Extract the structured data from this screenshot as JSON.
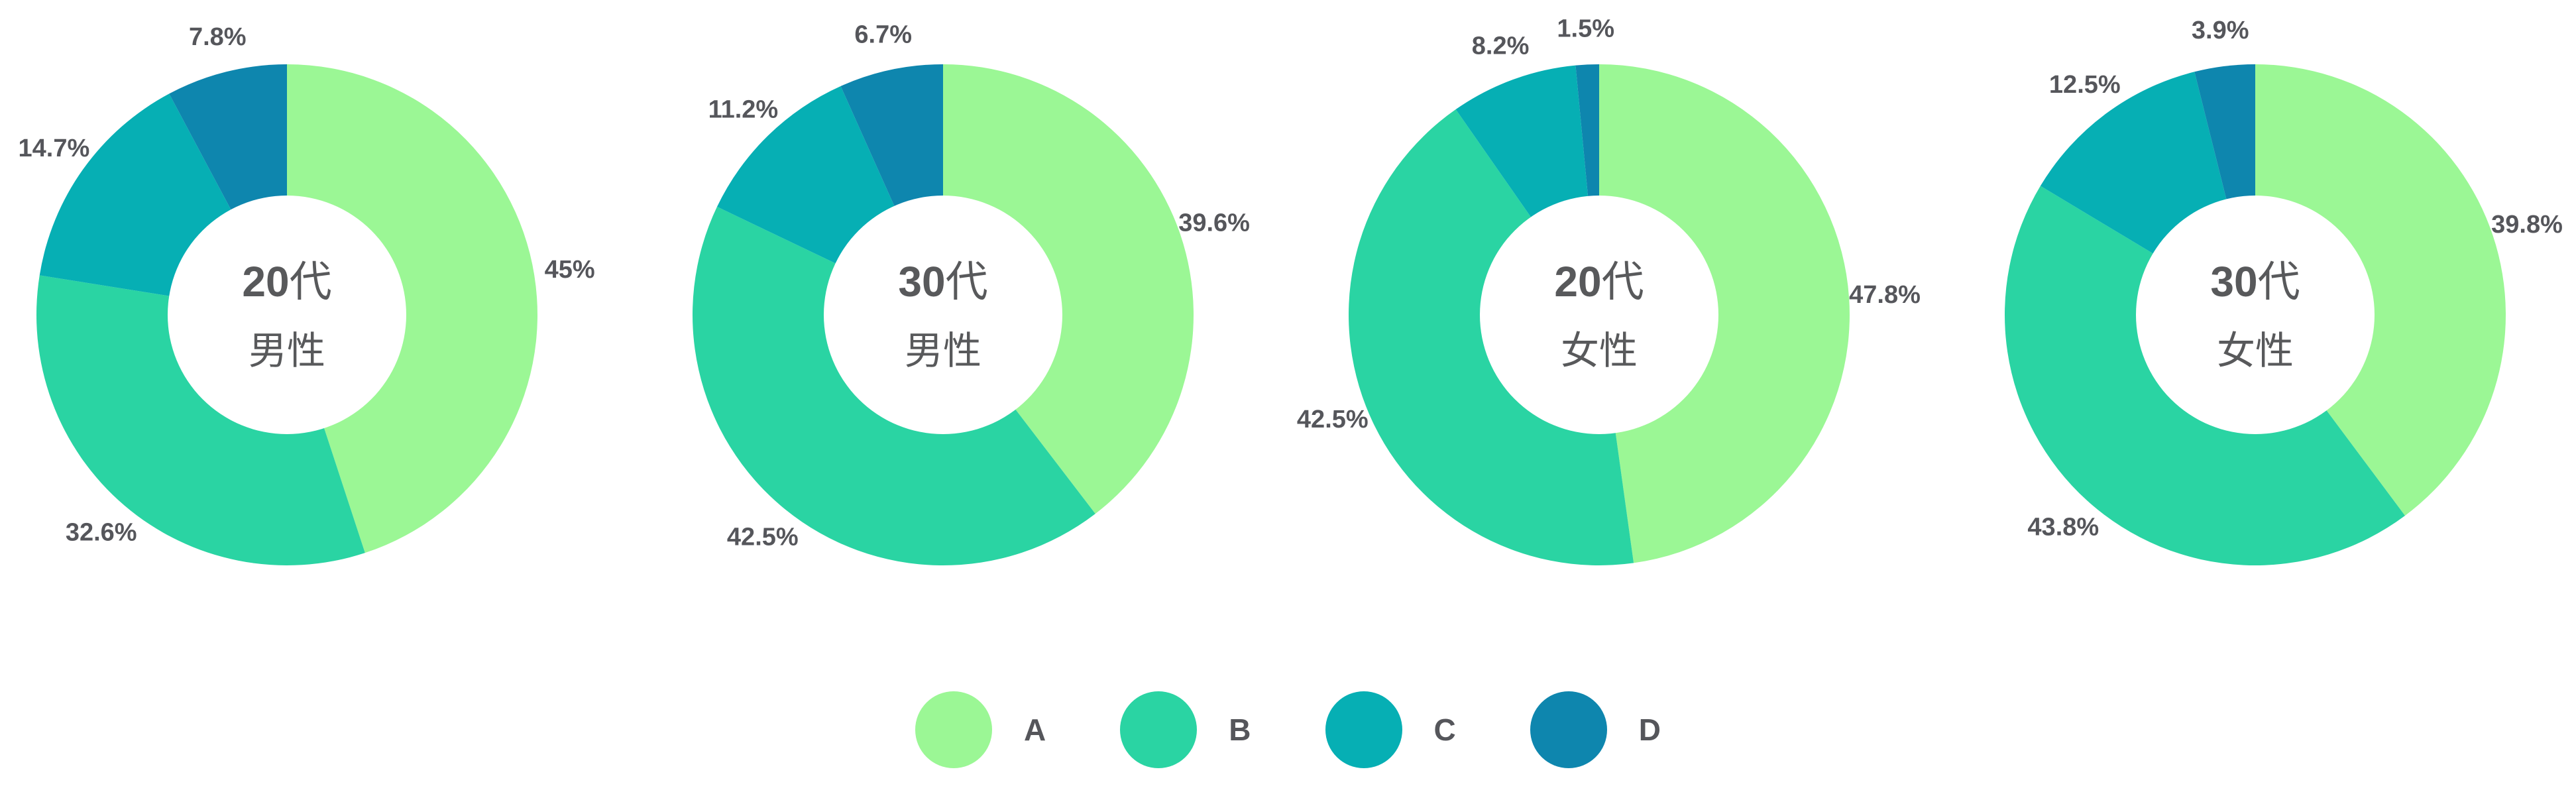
{
  "page": {
    "background": "#ffffff",
    "text_color": "#55565B",
    "center_text_color": "#58595B"
  },
  "chart_data": {
    "type": "pie",
    "subtype": "donut",
    "title": "",
    "legend_position": "bottom",
    "start_angle_deg": 0,
    "direction": "clockwise",
    "series_legend": [
      {
        "name": "A",
        "color": "#9BF795"
      },
      {
        "name": "B",
        "color": "#2AD4A3"
      },
      {
        "name": "C",
        "color": "#06AFB4"
      },
      {
        "name": "D",
        "color": "#0E86AE"
      }
    ],
    "charts": [
      {
        "title": "20代男性",
        "center_label_lines": [
          "20代",
          "男性"
        ],
        "slices": [
          {
            "series": "A",
            "value": 45.0,
            "label": "45%"
          },
          {
            "series": "B",
            "value": 32.6,
            "label": "32.6%"
          },
          {
            "series": "C",
            "value": 14.7,
            "label": "14.7%"
          },
          {
            "series": "D",
            "value": 7.8,
            "label": "7.8%"
          }
        ]
      },
      {
        "title": "30代男性",
        "center_label_lines": [
          "30代",
          "男性"
        ],
        "slices": [
          {
            "series": "A",
            "value": 39.6,
            "label": "39.6%"
          },
          {
            "series": "B",
            "value": 42.5,
            "label": "42.5%"
          },
          {
            "series": "C",
            "value": 11.2,
            "label": "11.2%"
          },
          {
            "series": "D",
            "value": 6.7,
            "label": "6.7%"
          }
        ]
      },
      {
        "title": "20代女性",
        "center_label_lines": [
          "20代",
          "女性"
        ],
        "slices": [
          {
            "series": "A",
            "value": 47.8,
            "label": "47.8%"
          },
          {
            "series": "B",
            "value": 42.5,
            "label": "42.5%"
          },
          {
            "series": "C",
            "value": 8.2,
            "label": "8.2%"
          },
          {
            "series": "D",
            "value": 1.5,
            "label": "1.5%"
          }
        ]
      },
      {
        "title": "30代女性",
        "center_label_lines": [
          "30代",
          "女性"
        ],
        "slices": [
          {
            "series": "A",
            "value": 39.8,
            "label": "39.8%"
          },
          {
            "series": "B",
            "value": 43.8,
            "label": "43.8%"
          },
          {
            "series": "C",
            "value": 12.5,
            "label": "12.5%"
          },
          {
            "series": "D",
            "value": 3.9,
            "label": "3.9%"
          }
        ]
      }
    ]
  }
}
